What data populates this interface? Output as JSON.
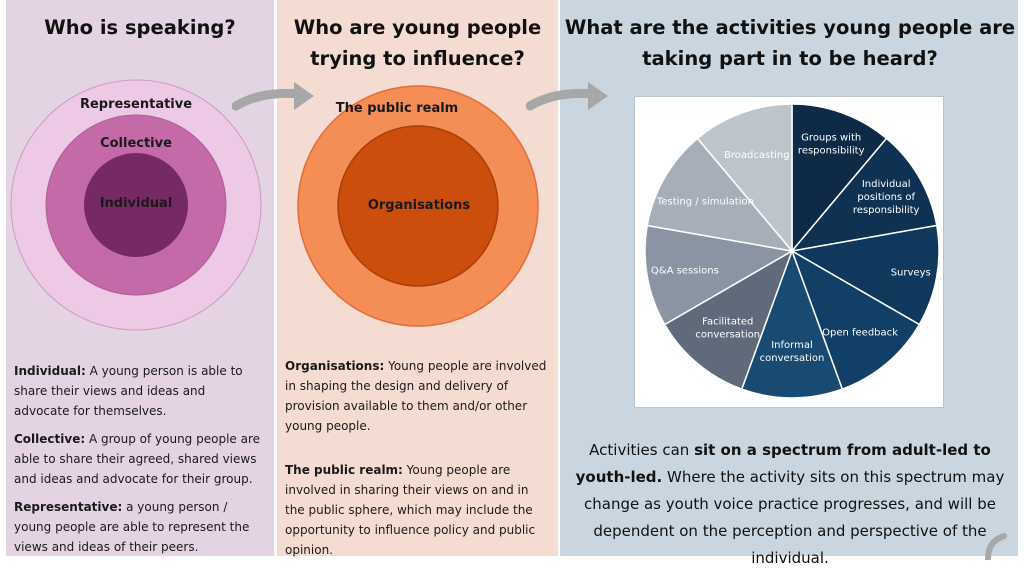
{
  "panel1": {
    "title": "Who is speaking?",
    "ring_outer": "Representative",
    "ring_middle": "Collective",
    "ring_inner": "Individual",
    "defs": [
      {
        "term": "Individual:",
        "text": " A young person is able to share their views and ideas and advocate for themselves."
      },
      {
        "term": "Collective:",
        "text": " A group of young people are able to share their agreed, shared views and ideas and advocate for their group."
      },
      {
        "term": "Representative:",
        "text": " a young person / young people are able to represent the views and ideas of their peers."
      }
    ]
  },
  "panel2": {
    "title_line1": "Who are young people",
    "title_line2": "trying to influence?",
    "ring_outer": "The public realm",
    "ring_inner": "Organisations",
    "defs": [
      {
        "term": "Organisations:",
        "text": " Young people are involved in shaping the design and delivery of provision available to them and/or other young people."
      },
      {
        "term": "The public realm:",
        "text": " Young people are involved in sharing their views on and in the public sphere, which may include the opportunity to influence policy and public opinion."
      }
    ]
  },
  "panel3": {
    "title_line1": "What are the activities young people are",
    "title_line2": "taking part in to be heard?",
    "summary_pre": "Activities can ",
    "summary_bold": "sit on a spectrum from adult-led to youth-led.",
    "summary_post": " Where the activity sits on this spectrum may change as youth voice practice progresses, and will be dependent on the perception and perspective of the individual."
  },
  "colors": {
    "panel1_bg": "#e4d3e2",
    "panel2_bg": "#f5dcd3",
    "panel3_bg": "#c9d6df",
    "ring_representative": "#edc9e5",
    "ring_collective": "#c46aa8",
    "ring_individual": "#752a64",
    "ring_public_realm": "#f58d57",
    "ring_organisations": "#cc4e0d",
    "arrow": "#a7a7a7"
  },
  "chart_data": {
    "type": "pie",
    "categories": [
      "Groups with responsibility",
      "Individual positions of responsibility",
      "Surveys",
      "Open feedback",
      "Informal conversation",
      "Facilitated conversation",
      "Q&A sessions",
      "Testing / simulation",
      "Broadcasting"
    ],
    "values": [
      1,
      1,
      1,
      1,
      1,
      1,
      1,
      1,
      1
    ],
    "display_labels": [
      [
        "Groups with",
        "responsibility"
      ],
      [
        "Individual",
        "positions of",
        "responsibility"
      ],
      [
        "Surveys"
      ],
      [
        "Open feedback"
      ],
      [
        "Informal",
        "conversation"
      ],
      [
        "Facilitated",
        "conversation"
      ],
      [
        "Q&A sessions"
      ],
      [
        "Testing / simulation"
      ],
      [
        "Broadcasting"
      ]
    ],
    "colors": [
      "#0e2a47",
      "#0f3252",
      "#10385c",
      "#123f66",
      "#194a72",
      "#5f6b7b",
      "#8a94a2",
      "#a5aeb9",
      "#bec4cb"
    ],
    "label_colors": [
      "#ffffff",
      "#ffffff",
      "#ffffff",
      "#ffffff",
      "#ffffff",
      "#ffffff",
      "#ffffff",
      "#ffffff",
      "#ffffff"
    ]
  }
}
